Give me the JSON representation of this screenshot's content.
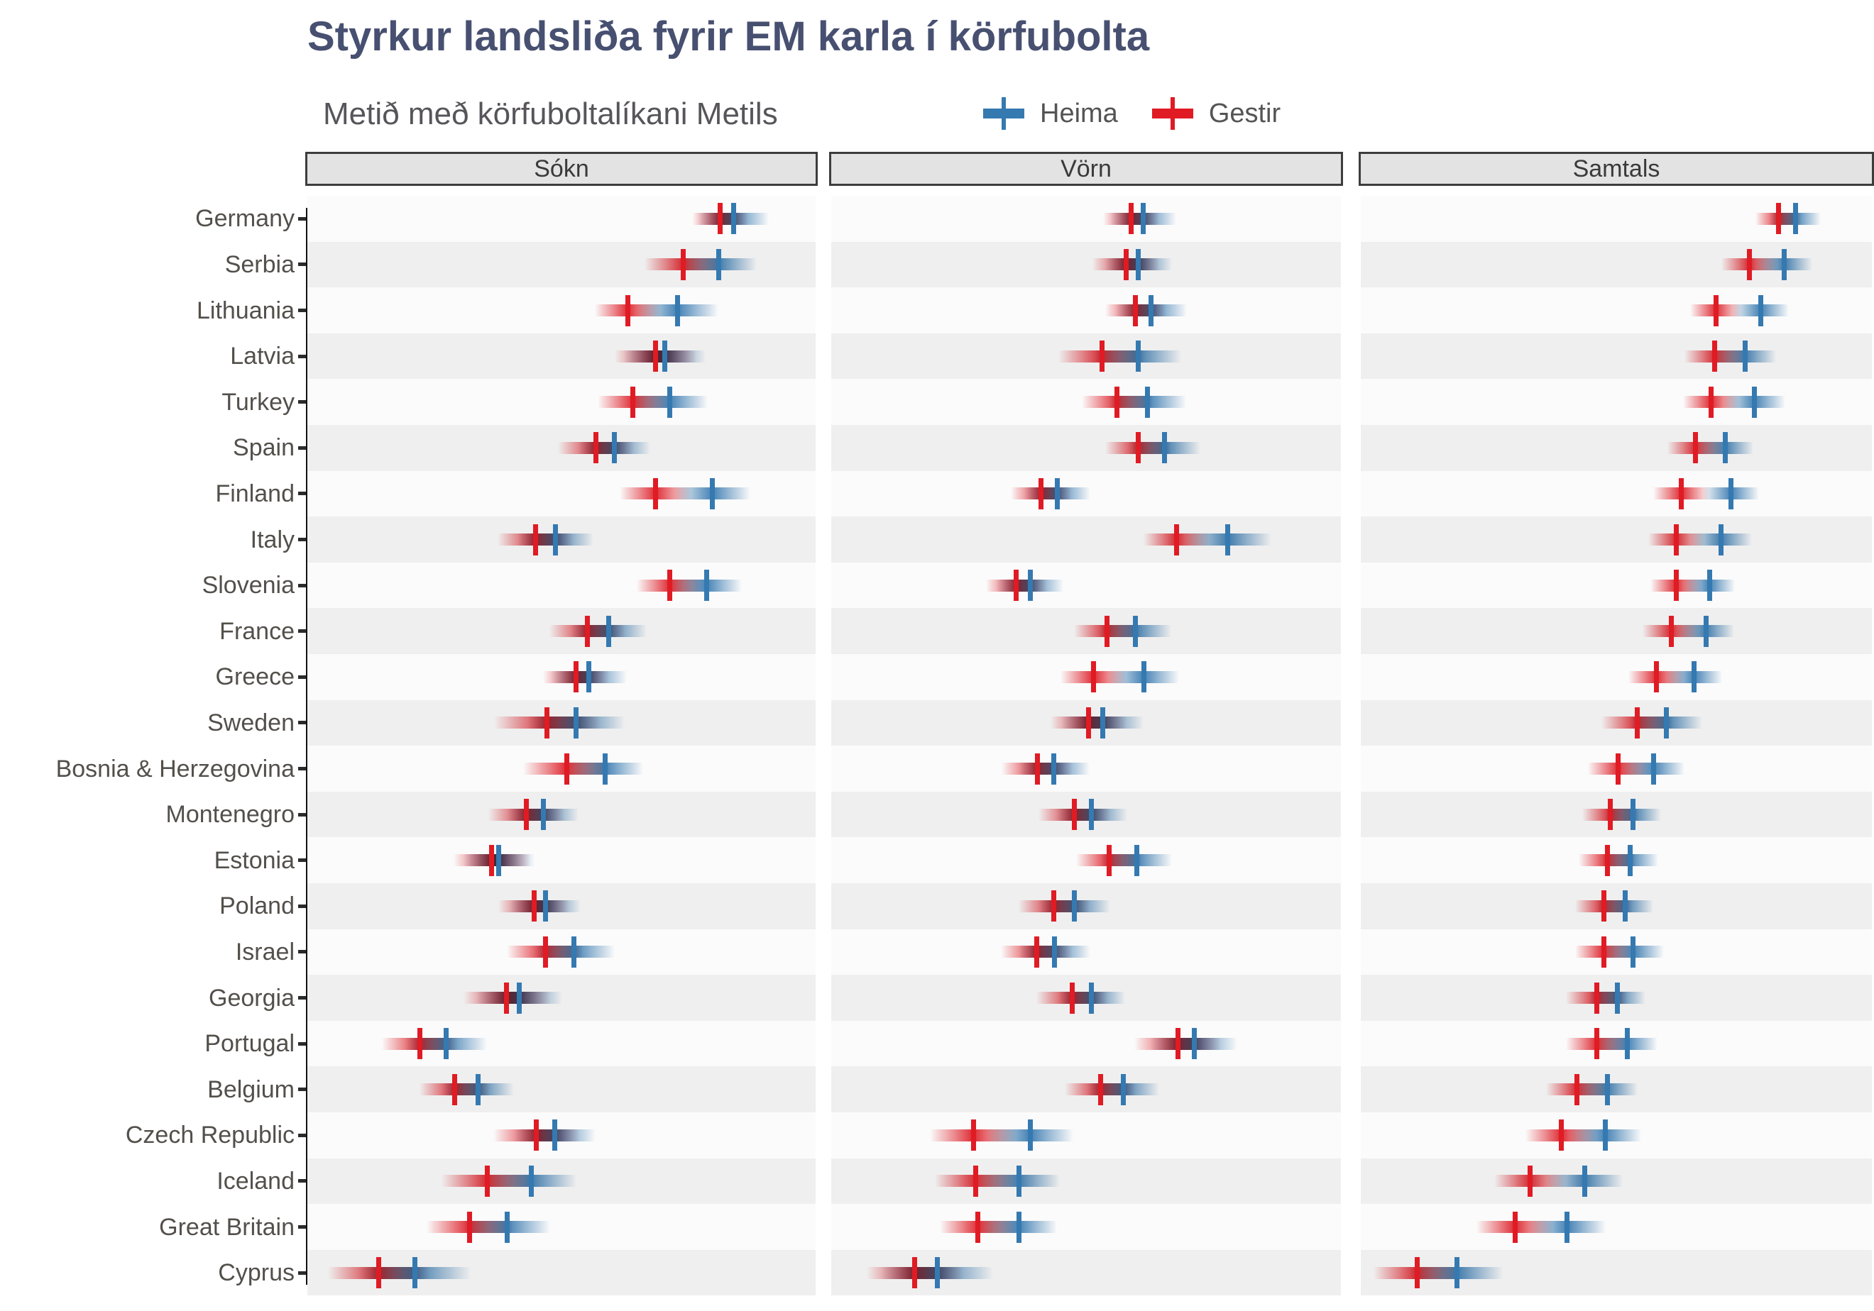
{
  "title": "Styrkur landsliða fyrir EM karla í körfubolta",
  "subtitle": "Metið með körfuboltalíkani Metils",
  "legend": {
    "items": [
      {
        "label": "Heima",
        "color": "#3579b1"
      },
      {
        "label": "Gestir",
        "color": "#e01b24"
      }
    ]
  },
  "colors": {
    "heima_blue": "#3579b1",
    "gestir_red": "#e01b24",
    "title": "#475070",
    "stripe_gray": "#efefef",
    "stripe_white": "#fbfbfb",
    "header_fill": "#e3e3e3",
    "header_border": "#3d3d3d",
    "axis": "#121212",
    "label_gray": "#53504b"
  },
  "chart_data": {
    "type": "scatter",
    "title": "Styrkur landsliða fyrir EM karla í körfubolta",
    "subtitle": "Metið með körfuboltalíkani Metils",
    "note": "Faceted strength-rating dot plot; each marker is a median tick with a fading uncertainty band. No numeric x-axis labels are shown; x values are fractions (0-1) of each facet's width, spread = band half-width fraction.",
    "facets": [
      "Sókn",
      "Vörn",
      "Samtals"
    ],
    "categories": [
      "Germany",
      "Serbia",
      "Lithuania",
      "Latvia",
      "Turkey",
      "Spain",
      "Finland",
      "Italy",
      "Slovenia",
      "France",
      "Greece",
      "Sweden",
      "Bosnia & Herzegovina",
      "Montenegro",
      "Estonia",
      "Poland",
      "Israel",
      "Georgia",
      "Portugal",
      "Belgium",
      "Czech Republic",
      "Iceland",
      "Great Britain",
      "Cyprus"
    ],
    "legend_position": "top",
    "grid": "off",
    "series": [
      {
        "name": "Heima",
        "color": "#3579b1",
        "values": {
          "Sókn": [
            0.838,
            0.809,
            0.728,
            0.703,
            0.713,
            0.604,
            0.797,
            0.488,
            0.785,
            0.593,
            0.554,
            0.529,
            0.586,
            0.464,
            0.377,
            0.468,
            0.525,
            0.417,
            0.273,
            0.336,
            0.487,
            0.44,
            0.393,
            0.211
          ],
          "Vörn": [
            0.612,
            0.603,
            0.628,
            0.602,
            0.621,
            0.654,
            0.444,
            0.778,
            0.39,
            0.597,
            0.613,
            0.533,
            0.437,
            0.511,
            0.599,
            0.477,
            0.438,
            0.511,
            0.712,
            0.573,
            0.39,
            0.368,
            0.368,
            0.208
          ],
          "Samtals": [
            0.85,
            0.828,
            0.782,
            0.752,
            0.77,
            0.713,
            0.724,
            0.705,
            0.682,
            0.675,
            0.652,
            0.598,
            0.573,
            0.533,
            0.527,
            0.517,
            0.533,
            0.502,
            0.521,
            0.482,
            0.479,
            0.438,
            0.404,
            0.188
          ]
        },
        "spread": {
          "Sókn": [
            0.07,
            0.075,
            0.08,
            0.08,
            0.075,
            0.07,
            0.075,
            0.075,
            0.07,
            0.075,
            0.075,
            0.095,
            0.075,
            0.07,
            0.07,
            0.07,
            0.08,
            0.085,
            0.08,
            0.07,
            0.08,
            0.09,
            0.085,
            0.11
          ],
          "Vörn": [
            0.065,
            0.065,
            0.07,
            0.085,
            0.075,
            0.07,
            0.065,
            0.085,
            0.065,
            0.07,
            0.07,
            0.08,
            0.07,
            0.07,
            0.07,
            0.07,
            0.07,
            0.065,
            0.085,
            0.07,
            0.085,
            0.08,
            0.075,
            0.11
          ],
          "Samtals": [
            0.05,
            0.055,
            0.055,
            0.06,
            0.06,
            0.055,
            0.055,
            0.06,
            0.05,
            0.055,
            0.055,
            0.07,
            0.06,
            0.055,
            0.055,
            0.055,
            0.06,
            0.055,
            0.06,
            0.06,
            0.07,
            0.075,
            0.075,
            0.09
          ]
        }
      },
      {
        "name": "Gestir",
        "color": "#e01b24",
        "values": {
          "Sókn": [
            0.812,
            0.739,
            0.631,
            0.685,
            0.641,
            0.568,
            0.685,
            0.449,
            0.713,
            0.551,
            0.529,
            0.472,
            0.51,
            0.431,
            0.363,
            0.446,
            0.468,
            0.392,
            0.221,
            0.29,
            0.451,
            0.354,
            0.319,
            0.14
          ],
          "Vörn": [
            0.588,
            0.578,
            0.597,
            0.531,
            0.561,
            0.602,
            0.412,
            0.678,
            0.363,
            0.541,
            0.515,
            0.505,
            0.404,
            0.477,
            0.545,
            0.437,
            0.403,
            0.473,
            0.68,
            0.528,
            0.279,
            0.284,
            0.288,
            0.164
          ],
          "Samtals": [
            0.817,
            0.76,
            0.695,
            0.693,
            0.685,
            0.655,
            0.627,
            0.617,
            0.617,
            0.607,
            0.578,
            0.541,
            0.504,
            0.488,
            0.482,
            0.475,
            0.475,
            0.462,
            0.462,
            0.423,
            0.392,
            0.331,
            0.302,
            0.11
          ]
        },
        "spread": {
          "Sókn": [
            0.055,
            0.075,
            0.065,
            0.08,
            0.07,
            0.075,
            0.07,
            0.075,
            0.065,
            0.075,
            0.065,
            0.105,
            0.085,
            0.075,
            0.075,
            0.07,
            0.075,
            0.085,
            0.075,
            0.07,
            0.085,
            0.09,
            0.085,
            0.1
          ],
          "Vörn": [
            0.055,
            0.065,
            0.06,
            0.085,
            0.07,
            0.065,
            0.06,
            0.065,
            0.06,
            0.065,
            0.065,
            0.075,
            0.07,
            0.07,
            0.065,
            0.07,
            0.07,
            0.07,
            0.085,
            0.07,
            0.085,
            0.08,
            0.075,
            0.095
          ],
          "Samtals": [
            0.045,
            0.055,
            0.05,
            0.06,
            0.055,
            0.055,
            0.055,
            0.055,
            0.05,
            0.055,
            0.055,
            0.07,
            0.06,
            0.055,
            0.055,
            0.055,
            0.055,
            0.06,
            0.06,
            0.06,
            0.07,
            0.07,
            0.075,
            0.085
          ]
        }
      }
    ]
  }
}
